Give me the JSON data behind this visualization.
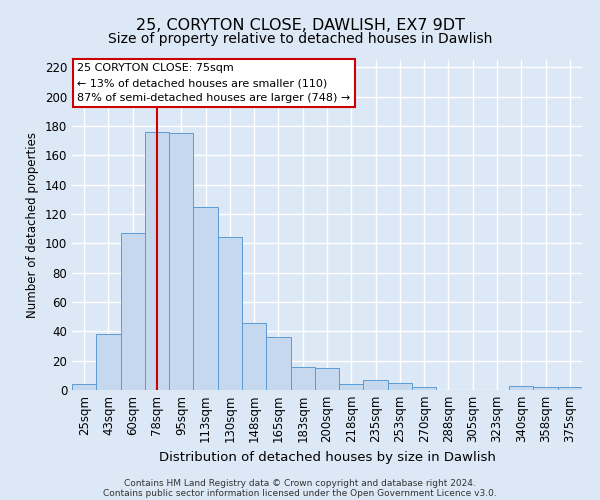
{
  "title": "25, CORYTON CLOSE, DAWLISH, EX7 9DT",
  "subtitle": "Size of property relative to detached houses in Dawlish",
  "xlabel": "Distribution of detached houses by size in Dawlish",
  "ylabel": "Number of detached properties",
  "bar_labels": [
    "25sqm",
    "43sqm",
    "60sqm",
    "78sqm",
    "95sqm",
    "113sqm",
    "130sqm",
    "148sqm",
    "165sqm",
    "183sqm",
    "200sqm",
    "218sqm",
    "235sqm",
    "253sqm",
    "270sqm",
    "288sqm",
    "305sqm",
    "323sqm",
    "340sqm",
    "358sqm",
    "375sqm"
  ],
  "bar_values": [
    4,
    38,
    107,
    176,
    175,
    125,
    104,
    46,
    36,
    16,
    15,
    4,
    7,
    5,
    2,
    0,
    0,
    0,
    3,
    2,
    2
  ],
  "bar_color": "#c5d8ed",
  "bar_edge_color": "#5b9bd5",
  "vline_x_index": 3,
  "vline_color": "#cc0000",
  "ylim": [
    0,
    225
  ],
  "yticks": [
    0,
    20,
    40,
    60,
    80,
    100,
    120,
    140,
    160,
    180,
    200,
    220
  ],
  "annotation_title": "25 CORYTON CLOSE: 75sqm",
  "annotation_line1": "← 13% of detached houses are smaller (110)",
  "annotation_line2": "87% of semi-detached houses are larger (748) →",
  "annotation_box_facecolor": "#ffffff",
  "annotation_box_edgecolor": "#cc0000",
  "footer_line1": "Contains HM Land Registry data © Crown copyright and database right 2024.",
  "footer_line2": "Contains public sector information licensed under the Open Government Licence v3.0.",
  "fig_facecolor": "#dce8f5",
  "plot_facecolor": "#dce8f5",
  "grid_color": "#ffffff",
  "title_fontsize": 11.5,
  "subtitle_fontsize": 10,
  "ylabel_fontsize": 8.5,
  "xlabel_fontsize": 9.5,
  "tick_fontsize": 8.5,
  "annot_fontsize": 8,
  "footer_fontsize": 6.5,
  "bar_width": 1.0
}
